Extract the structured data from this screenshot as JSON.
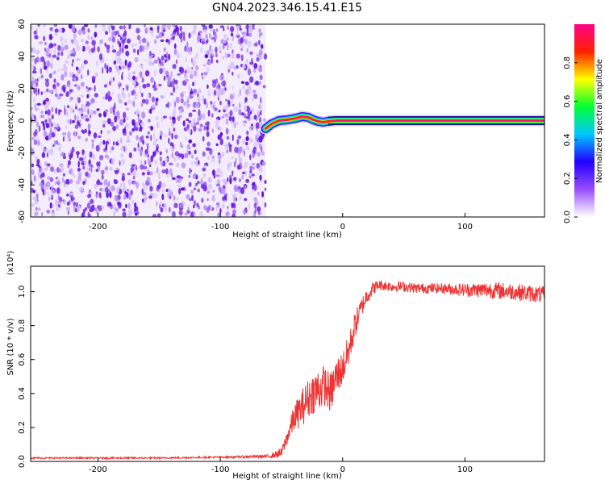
{
  "title": "GN04.2023.346.15.41.E15",
  "chart_data": [
    {
      "type": "heatmap",
      "panel": "spectrogram",
      "xlabel": "Height of straight line (km)",
      "ylabel": "Frequency (Hz)",
      "xlim": [
        -255,
        165
      ],
      "ylim": [
        -60,
        60
      ],
      "xticks": [
        -200,
        -100,
        0,
        100
      ],
      "yticks": [
        -60,
        -40,
        -20,
        0,
        20,
        40,
        60
      ],
      "grid": false,
      "noise_region": {
        "x_range": [
          -255,
          -63
        ],
        "y_range": [
          -60,
          60
        ],
        "color_levels": [
          0.02,
          0.12
        ],
        "colors": [
          "#d9c2f7",
          "#b48cf2",
          "#7a2ee6",
          "#5a10d8"
        ]
      },
      "signal_track": {
        "x": [
          -63,
          -58,
          -52,
          -45,
          -38,
          -33,
          -28,
          -24,
          -20,
          -16,
          -12,
          -6,
          0,
          20,
          40,
          60,
          80,
          100,
          120,
          140,
          165
        ],
        "freq": [
          -5,
          -2,
          0,
          0.5,
          1.5,
          2.5,
          2,
          0.5,
          -0.5,
          -1,
          -0.5,
          0,
          0,
          0,
          0,
          0,
          0,
          0,
          0,
          0,
          0
        ],
        "amplitude": 1.0
      },
      "colorbar": {
        "label": "Normalized spectral amplitude",
        "range": [
          0,
          1
        ],
        "ticks": [
          0.0,
          0.2,
          0.4,
          0.6,
          0.8
        ],
        "colors": [
          "#ffffff",
          "#9a4dff",
          "#2200ff",
          "#00c8ff",
          "#00ff33",
          "#ffff00",
          "#ff2200",
          "#ff0088"
        ]
      }
    },
    {
      "type": "line",
      "panel": "snr",
      "xlabel": "Height of straight line (km)",
      "ylabel": "SNR (10 * v/v)",
      "y_multiplier": "(x10⁴)",
      "xlim": [
        -255,
        165
      ],
      "ylim": [
        0,
        1.15
      ],
      "xticks": [
        -200,
        -100,
        0,
        100
      ],
      "yticks": [
        0.0,
        0.2,
        0.4,
        0.6,
        0.8,
        1.0
      ],
      "grid": false,
      "series": [
        {
          "color": "#ee3333",
          "x": [
            -255,
            -200,
            -150,
            -100,
            -60,
            -50,
            -45,
            -40,
            -35,
            -30,
            -25,
            -20,
            -15,
            -10,
            -5,
            0,
            5,
            10,
            15,
            20,
            25,
            30,
            40,
            50,
            60,
            80,
            100,
            120,
            140,
            165
          ],
          "y": [
            0.02,
            0.02,
            0.02,
            0.025,
            0.03,
            0.05,
            0.15,
            0.25,
            0.3,
            0.35,
            0.4,
            0.42,
            0.45,
            0.4,
            0.5,
            0.55,
            0.65,
            0.8,
            0.9,
            0.98,
            1.02,
            1.04,
            1.03,
            1.03,
            1.02,
            1.02,
            1.01,
            1.01,
            1.0,
            0.98
          ],
          "noise": [
            0.005,
            0.005,
            0.005,
            0.005,
            0.01,
            0.03,
            0.05,
            0.08,
            0.1,
            0.12,
            0.12,
            0.14,
            0.12,
            0.12,
            0.12,
            0.1,
            0.1,
            0.08,
            0.06,
            0.05,
            0.04,
            0.03,
            0.03,
            0.03,
            0.03,
            0.03,
            0.04,
            0.05,
            0.05,
            0.05
          ]
        }
      ]
    }
  ]
}
